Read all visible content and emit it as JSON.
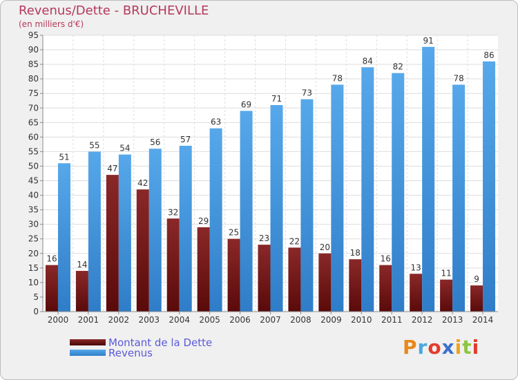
{
  "header": {
    "title": "Revenus/Dette - BRUCHEVILLE",
    "subtitle": "(en milliers d'€)"
  },
  "legend": {
    "items": [
      {
        "label": "Montant de la Dette",
        "color": "#7a1818"
      },
      {
        "label": "Revenus",
        "color": "#3d8fdb"
      }
    ]
  },
  "logo": {
    "text": "Proxiti",
    "colors": [
      "#e8881c",
      "#4aa7e0",
      "#e23c2d",
      "#3c6fd0",
      "#f0a21c",
      "#8ec63f",
      "#e23c2d"
    ]
  },
  "chart_data": {
    "type": "bar",
    "title": "Revenus/Dette - BRUCHEVILLE",
    "subtitle": "(en milliers d'€)",
    "xlabel": "",
    "ylabel": "",
    "ylim": [
      0,
      95
    ],
    "yticks": [
      0,
      5,
      10,
      15,
      20,
      25,
      30,
      35,
      40,
      45,
      50,
      55,
      60,
      65,
      70,
      75,
      80,
      85,
      90,
      95
    ],
    "grid": true,
    "categories": [
      "2000",
      "2001",
      "2002",
      "2003",
      "2004",
      "2005",
      "2006",
      "2007",
      "2008",
      "2009",
      "2010",
      "2011",
      "2012",
      "2013",
      "2014"
    ],
    "series": [
      {
        "name": "Montant de la Dette",
        "color": "#7a1818",
        "values": [
          16,
          14,
          47,
          42,
          32,
          29,
          25,
          23,
          22,
          20,
          18,
          16,
          13,
          11,
          9
        ]
      },
      {
        "name": "Revenus",
        "color": "#3d8fdb",
        "values": [
          51,
          55,
          54,
          56,
          57,
          63,
          69,
          71,
          73,
          78,
          84,
          82,
          91,
          78,
          86
        ]
      }
    ]
  }
}
